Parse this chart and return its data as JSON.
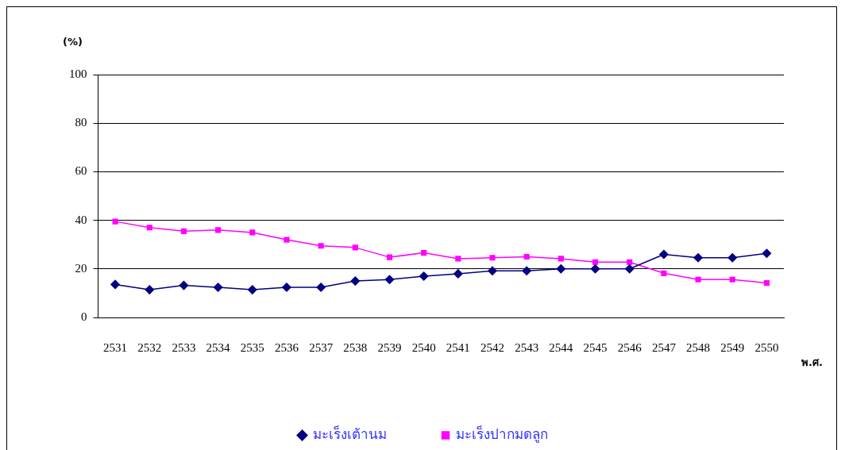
{
  "chart_data": {
    "type": "line",
    "xlabel": "พ.ศ.",
    "ylabel": "(%)",
    "categories": [
      "2531",
      "2532",
      "2533",
      "2534",
      "2535",
      "2536",
      "2537",
      "2538",
      "2539",
      "2540",
      "2541",
      "2542",
      "2543",
      "2544",
      "2545",
      "2546",
      "2547",
      "2548",
      "2549",
      "2550"
    ],
    "series": [
      {
        "name": "มะเร็งเต้านม",
        "color": "#000080",
        "marker": "diamond",
        "values": [
          13.6,
          11.4,
          13.2,
          12.4,
          11.4,
          12.4,
          12.4,
          15,
          15.6,
          17,
          18,
          19.2,
          19.2,
          20,
          20,
          20,
          26,
          24.6,
          24.6,
          26.4
        ]
      },
      {
        "name": "มะเร็งปากมดลูก",
        "color": "#ff00ff",
        "marker": "square",
        "values": [
          39.5,
          37,
          35.5,
          36,
          35,
          32,
          29.5,
          28.8,
          24.8,
          26.6,
          24.2,
          24.6,
          25,
          24.2,
          22.8,
          22.8,
          18.2,
          15.6,
          15.6,
          14.2
        ]
      }
    ],
    "ylim": [
      0,
      100
    ],
    "yticks": [
      0,
      20,
      40,
      60,
      80,
      100
    ],
    "grid": "y",
    "legend": "bottom"
  }
}
